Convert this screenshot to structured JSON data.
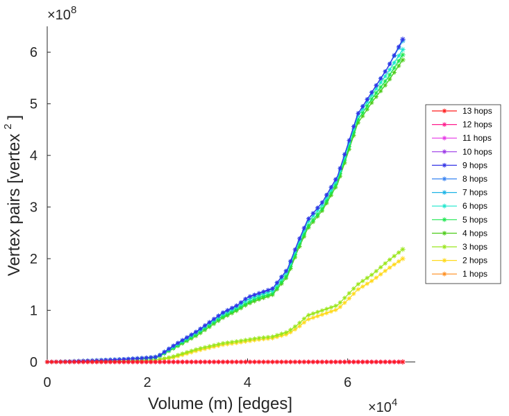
{
  "chart_data": {
    "type": "line",
    "title": "",
    "xlabel": "Volume (m) [edges]",
    "ylabel": "Vertex pairs [vertex",
    "ylabel_superscript": "2",
    "ylabel_close": "]",
    "x_exponent_label": "×10",
    "x_exponent": "4",
    "y_exponent_label": "×10",
    "y_exponent": "8",
    "xlim": [
      0,
      7.35
    ],
    "ylim": [
      0,
      6.5
    ],
    "x_ticks": [
      0,
      2,
      4,
      6
    ],
    "x_tick_labels": [
      "0",
      "2",
      "4",
      "6"
    ],
    "y_ticks": [
      0,
      1,
      2,
      3,
      4,
      5,
      6
    ],
    "y_tick_labels": [
      "0",
      "1",
      "2",
      "3",
      "4",
      "5",
      "6"
    ],
    "grid": false,
    "legend_position": "right",
    "x": [
      0,
      0.5,
      1,
      1.5,
      2,
      2.2,
      2.5,
      3,
      3.5,
      3.8,
      4,
      4.2,
      4.5,
      4.8,
      5,
      5.2,
      5.5,
      5.8,
      6,
      6.2,
      6.5,
      6.8,
      7.1
    ],
    "series": [
      {
        "name": "13 hops",
        "color": "#ff1a1a",
        "values": [
          0,
          0,
          0,
          0,
          0,
          0,
          0,
          0,
          0,
          0,
          0,
          0,
          0,
          0,
          0,
          0,
          0,
          0,
          0,
          0,
          0,
          0,
          0
        ]
      },
      {
        "name": "12 hops",
        "color": "#ff1a8c",
        "values": [
          0,
          0,
          0,
          0,
          0,
          0,
          0,
          0,
          0,
          0,
          0,
          0,
          0,
          0,
          0,
          0,
          0,
          0,
          0,
          0,
          0,
          0,
          0
        ]
      },
      {
        "name": "11 hops",
        "color": "#e633e6",
        "values": [
          0,
          0,
          0,
          0,
          0,
          0,
          0,
          0,
          0,
          0,
          0,
          0,
          0,
          0,
          0,
          0,
          0,
          0,
          0,
          0,
          0,
          0,
          0
        ]
      },
      {
        "name": "10 hops",
        "color": "#9933e6",
        "values": [
          0,
          0,
          0,
          0,
          0,
          0,
          0,
          0,
          0,
          0,
          0,
          0,
          0,
          0,
          0,
          0,
          0,
          0,
          0,
          0,
          0,
          0,
          0
        ]
      },
      {
        "name": "9 hops",
        "color": "#3333e6",
        "values": [
          0,
          0.01,
          0.03,
          0.05,
          0.08,
          0.1,
          0.3,
          0.6,
          0.95,
          1.1,
          1.25,
          1.32,
          1.42,
          1.8,
          2.3,
          2.75,
          3.1,
          3.6,
          4.2,
          4.8,
          5.25,
          5.7,
          6.25
        ]
      },
      {
        "name": "8 hops",
        "color": "#3380f2",
        "values": [
          0,
          0.01,
          0.03,
          0.05,
          0.08,
          0.1,
          0.3,
          0.6,
          0.95,
          1.1,
          1.25,
          1.32,
          1.42,
          1.8,
          2.3,
          2.75,
          3.1,
          3.6,
          4.2,
          4.8,
          5.25,
          5.7,
          6.25
        ]
      },
      {
        "name": "7 hops",
        "color": "#1ab3e6",
        "values": [
          0,
          0.01,
          0.03,
          0.05,
          0.08,
          0.1,
          0.3,
          0.6,
          0.95,
          1.1,
          1.25,
          1.32,
          1.42,
          1.8,
          2.3,
          2.75,
          3.1,
          3.6,
          4.2,
          4.8,
          5.25,
          5.7,
          6.22
        ]
      },
      {
        "name": "6 hops",
        "color": "#1ae6cc",
        "values": [
          0,
          0.01,
          0.03,
          0.05,
          0.08,
          0.1,
          0.28,
          0.58,
          0.92,
          1.07,
          1.2,
          1.28,
          1.38,
          1.76,
          2.25,
          2.7,
          3.05,
          3.55,
          4.15,
          4.75,
          5.2,
          5.6,
          6.05
        ]
      },
      {
        "name": "5 hops",
        "color": "#1ae64d",
        "values": [
          0,
          0.01,
          0.03,
          0.05,
          0.07,
          0.09,
          0.26,
          0.55,
          0.88,
          1.03,
          1.15,
          1.24,
          1.33,
          1.7,
          2.2,
          2.62,
          2.98,
          3.5,
          4.08,
          4.68,
          5.12,
          5.5,
          5.95
        ]
      },
      {
        "name": "4 hops",
        "color": "#4dcc1a",
        "values": [
          0,
          0.01,
          0.03,
          0.05,
          0.07,
          0.09,
          0.25,
          0.52,
          0.85,
          1.0,
          1.12,
          1.2,
          1.3,
          1.66,
          2.15,
          2.58,
          2.94,
          3.45,
          4.03,
          4.62,
          5.05,
          5.42,
          5.85
        ]
      },
      {
        "name": "3 hops",
        "color": "#99e61a",
        "values": [
          0,
          0,
          0.01,
          0.02,
          0.03,
          0.04,
          0.1,
          0.25,
          0.36,
          0.4,
          0.43,
          0.46,
          0.49,
          0.58,
          0.72,
          0.9,
          1.0,
          1.1,
          1.3,
          1.5,
          1.7,
          1.95,
          2.18
        ]
      },
      {
        "name": "2 hops",
        "color": "#ffd91a",
        "values": [
          0,
          0,
          0.01,
          0.02,
          0.03,
          0.04,
          0.08,
          0.22,
          0.33,
          0.37,
          0.4,
          0.43,
          0.46,
          0.54,
          0.66,
          0.82,
          0.92,
          1.02,
          1.2,
          1.4,
          1.58,
          1.8,
          2.0
        ]
      },
      {
        "name": "1 hops",
        "color": "#ff8c1a",
        "values": [
          0,
          0,
          0,
          0,
          0,
          0,
          0,
          0,
          0,
          0,
          0,
          0,
          0,
          0,
          0,
          0,
          0,
          0,
          0,
          0,
          0,
          0,
          0
        ]
      }
    ]
  }
}
